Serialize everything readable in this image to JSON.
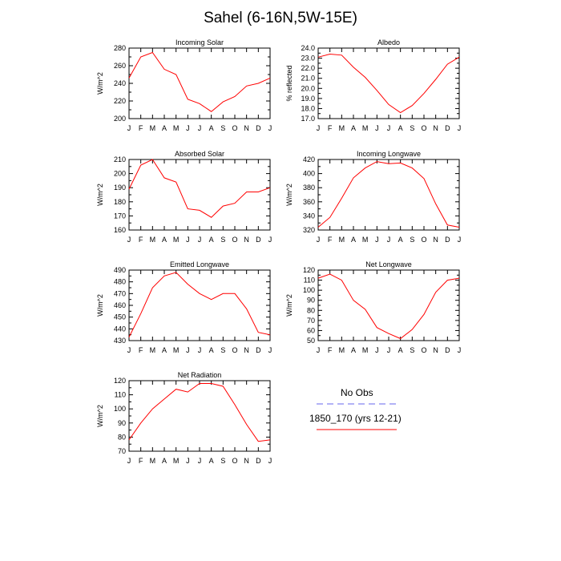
{
  "title": "Sahel (6-16N,5W-15E)",
  "colors": {
    "model": "#ff0000",
    "obs": "#6666ee",
    "axis": "#000000"
  },
  "legend": {
    "obs_label": "No Obs",
    "model_label": "1850_170 (yrs 12-21)"
  },
  "chart_data": [
    {
      "type": "line",
      "title": "Incoming Solar",
      "ylabel": "W/m^2",
      "categories": [
        "J",
        "F",
        "M",
        "A",
        "M",
        "J",
        "J",
        "A",
        "S",
        "O",
        "N",
        "D",
        "J"
      ],
      "ylim": [
        200,
        280
      ],
      "yticks": [
        "200",
        "220",
        "240",
        "260",
        "280"
      ],
      "series": [
        {
          "values": [
            246,
            270,
            275,
            256,
            250,
            222,
            217,
            208,
            219,
            225,
            237,
            240,
            246
          ]
        }
      ]
    },
    {
      "type": "line",
      "title": "Albedo",
      "ylabel": "% reflected",
      "categories": [
        "J",
        "F",
        "M",
        "A",
        "M",
        "J",
        "J",
        "A",
        "S",
        "O",
        "N",
        "D",
        "J"
      ],
      "ylim": [
        17,
        24
      ],
      "yticks": [
        "17.0",
        "18.0",
        "19.0",
        "20.0",
        "21.0",
        "22.0",
        "23.0",
        "24.0"
      ],
      "series": [
        {
          "values": [
            23.1,
            23.4,
            23.3,
            22.1,
            21.1,
            19.8,
            18.4,
            17.6,
            18.3,
            19.5,
            20.9,
            22.4,
            23.1
          ]
        }
      ]
    },
    {
      "type": "line",
      "title": "Absorbed Solar",
      "ylabel": "W/m^2",
      "categories": [
        "J",
        "F",
        "M",
        "A",
        "M",
        "J",
        "J",
        "A",
        "S",
        "O",
        "N",
        "D",
        "J"
      ],
      "ylim": [
        160,
        210
      ],
      "yticks": [
        "160",
        "170",
        "180",
        "190",
        "200",
        "210"
      ],
      "series": [
        {
          "values": [
            189,
            206,
            210,
            197,
            194,
            175,
            174,
            169,
            177,
            179,
            187,
            187,
            190
          ]
        }
      ]
    },
    {
      "type": "line",
      "title": "Incoming Longwave",
      "ylabel": "W/m^2",
      "categories": [
        "J",
        "F",
        "M",
        "A",
        "M",
        "J",
        "J",
        "A",
        "S",
        "O",
        "N",
        "D",
        "J"
      ],
      "ylim": [
        320,
        420
      ],
      "yticks": [
        "320",
        "340",
        "360",
        "380",
        "400",
        "420"
      ],
      "series": [
        {
          "values": [
            324,
            338,
            365,
            394,
            408,
            417,
            414,
            415,
            408,
            393,
            357,
            327,
            324
          ]
        }
      ]
    },
    {
      "type": "line",
      "title": "Emitted Longwave",
      "ylabel": "W/m^2",
      "categories": [
        "J",
        "F",
        "M",
        "A",
        "M",
        "J",
        "J",
        "A",
        "S",
        "O",
        "N",
        "D",
        "J"
      ],
      "ylim": [
        430,
        490
      ],
      "yticks": [
        "430",
        "440",
        "450",
        "460",
        "470",
        "480",
        "490"
      ],
      "series": [
        {
          "values": [
            433,
            453,
            475,
            485,
            488,
            478,
            470,
            465,
            470,
            470,
            457,
            437,
            435
          ]
        }
      ]
    },
    {
      "type": "line",
      "title": "Net Longwave",
      "ylabel": "W/m^2",
      "categories": [
        "J",
        "F",
        "M",
        "A",
        "M",
        "J",
        "J",
        "A",
        "S",
        "O",
        "N",
        "D",
        "J"
      ],
      "ylim": [
        50,
        120
      ],
      "yticks": [
        "50",
        "60",
        "70",
        "80",
        "90",
        "100",
        "110",
        "120"
      ],
      "series": [
        {
          "values": [
            112,
            116,
            110,
            90,
            81,
            63,
            57,
            52,
            61,
            76,
            98,
            110,
            112
          ]
        }
      ]
    },
    {
      "type": "line",
      "title": "Net Radiation",
      "ylabel": "W/m^2",
      "categories": [
        "J",
        "F",
        "M",
        "A",
        "M",
        "J",
        "J",
        "A",
        "S",
        "O",
        "N",
        "D",
        "J"
      ],
      "ylim": [
        70,
        120
      ],
      "yticks": [
        "70",
        "80",
        "90",
        "100",
        "110",
        "120"
      ],
      "series": [
        {
          "values": [
            78,
            90,
            100,
            107,
            114,
            112,
            118,
            118,
            116,
            103,
            89,
            77,
            78
          ]
        }
      ]
    }
  ]
}
